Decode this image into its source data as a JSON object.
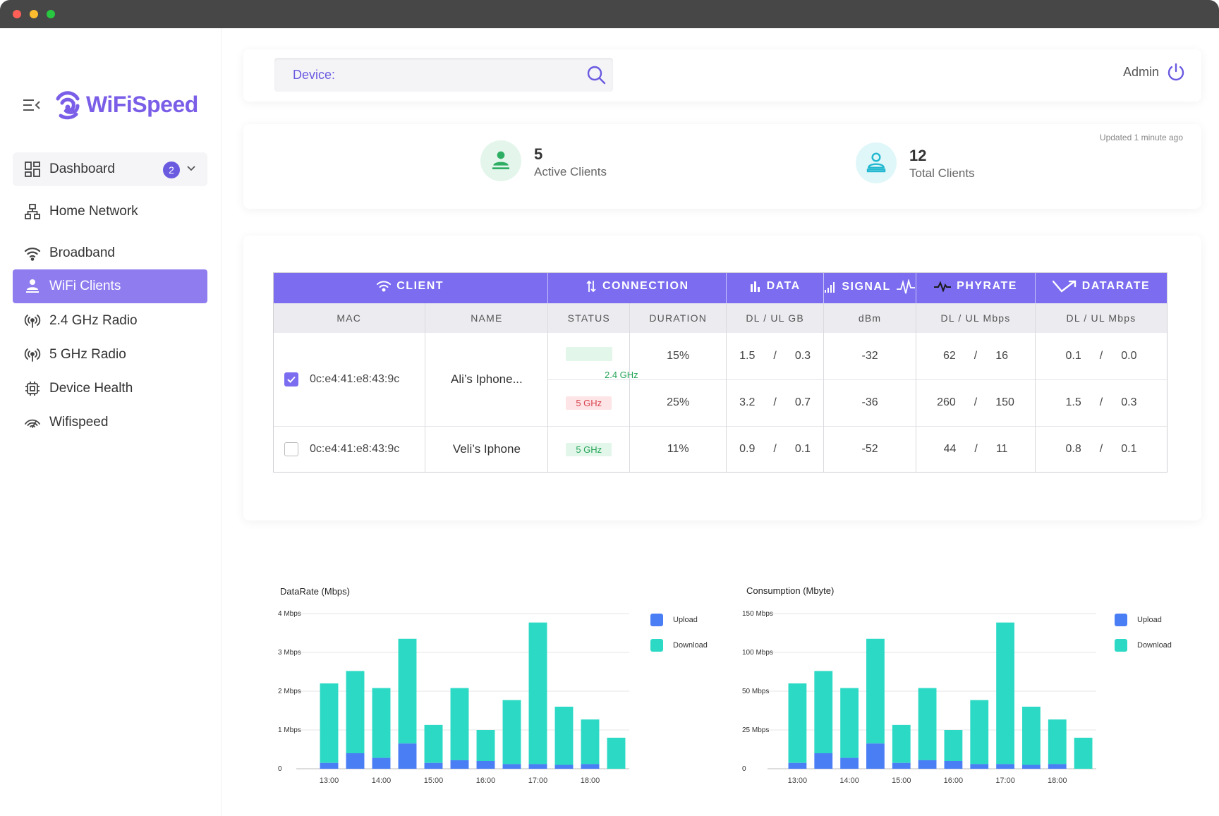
{
  "app": {
    "name": "WiFiSpeed"
  },
  "sidebar": {
    "items": [
      {
        "id": "dashboard",
        "label": "Dashboard",
        "icon": "dashboard-grid-icon",
        "badge": "2"
      },
      {
        "id": "home-network",
        "label": "Home Network",
        "icon": "network-tree-icon"
      },
      {
        "id": "broadband",
        "label": "Broadband",
        "icon": "wifi-icon"
      },
      {
        "id": "wifi-clients",
        "label": "WiFi Clients",
        "icon": "user-wifi-icon",
        "active": true
      },
      {
        "id": "radio-24",
        "label": "2.4 GHz Radio",
        "icon": "radio-antenna-icon"
      },
      {
        "id": "radio-5",
        "label": "5 GHz Radio",
        "icon": "radio-antenna-icon"
      },
      {
        "id": "device-health",
        "label": "Device Health",
        "icon": "chip-icon"
      },
      {
        "id": "wifispeed",
        "label": "Wifispeed",
        "icon": "speed-wifi-icon"
      }
    ]
  },
  "header": {
    "search_placeholder": "Device:",
    "user_label": "Admin"
  },
  "stats": {
    "updated": "Updated 1 minute ago",
    "active": {
      "value": "5",
      "label": "Active Clients"
    },
    "total": {
      "value": "12",
      "label": "Total Clients"
    }
  },
  "table": {
    "groups": {
      "client": "CLIENT",
      "connection": "CONNECTION",
      "data": "DATA",
      "signal": "SIGNAL",
      "phyrate": "PHYRATE",
      "datarate": "DATARATE"
    },
    "columns": {
      "mac": "MAC",
      "name": "NAME",
      "status": "STATUS",
      "duration": "DURATION",
      "data": "DL / UL GB",
      "signal": "dBm",
      "phyrate": "DL / UL  Mbps",
      "datarate": "DL / UL  Mbps"
    },
    "separator": "/",
    "clients": [
      {
        "mac": "0c:e4:41:e8:43:9c",
        "name": "Ali’s Iphone...",
        "checked": true,
        "rows": [
          {
            "status": "2.4 GHz",
            "duration": "15%",
            "dl_gb": "1.5",
            "ul_gb": "0.3",
            "dbm": "-32",
            "phy_dl": "62",
            "phy_ul": "16",
            "rate_dl": "0.1",
            "rate_ul": "0.0"
          },
          {
            "status": "5 GHz",
            "duration": "25%",
            "dl_gb": "3.2",
            "ul_gb": "0.7",
            "dbm": "-36",
            "phy_dl": "260",
            "phy_ul": "150",
            "rate_dl": "1.5",
            "rate_ul": "0.3"
          }
        ]
      },
      {
        "mac": "0c:e4:41:e8:43:9c",
        "name": "Veli’s Iphone",
        "checked": false,
        "rows": [
          {
            "status": "5 GHz",
            "duration": "11%",
            "dl_gb": "0.9",
            "ul_gb": "0.1",
            "dbm": "-52",
            "phy_dl": "44",
            "phy_ul": "11",
            "rate_dl": "0.8",
            "rate_ul": "0.1"
          }
        ]
      }
    ]
  },
  "colors": {
    "accent": "#7b6cf0",
    "upload": "#4a7ef5",
    "download": "#2bd9c4",
    "green": "#27a65a",
    "red": "#d94450"
  },
  "chart_data": [
    {
      "type": "bar",
      "stacked": true,
      "title": "DataRate (Mbps)",
      "y_ticks": [
        "0",
        "1 Mbps",
        "2 Mbps",
        "3 Mbps",
        "4 Mbps"
      ],
      "ylim": [
        0,
        4
      ],
      "x_ticks": [
        "13:00",
        "14:00",
        "15:00",
        "16:00",
        "17:00",
        "18:00"
      ],
      "legend_position": "right",
      "series": [
        {
          "name": "Upload",
          "values": [
            0.15,
            0.4,
            0.28,
            0.65,
            0.15,
            0.22,
            0.2,
            0.12,
            0.12,
            0.1,
            0.12,
            0
          ]
        },
        {
          "name": "Download",
          "values": [
            2.05,
            2.12,
            1.8,
            2.7,
            0.98,
            1.86,
            0.8,
            1.65,
            3.65,
            1.5,
            1.15,
            0.8
          ]
        }
      ]
    },
    {
      "type": "bar",
      "stacked": true,
      "title": "Consumption (Mbyte)",
      "y_ticks": [
        "0",
        "25 Mbps",
        "50 Mbps",
        "100 Mbps",
        "150 Mbps"
      ],
      "ylim": [
        0,
        4
      ],
      "x_ticks": [
        "13:00",
        "14:00",
        "15:00",
        "16:00",
        "17:00",
        "18:00"
      ],
      "legend_position": "right",
      "series": [
        {
          "name": "Upload",
          "values": [
            0.15,
            0.4,
            0.28,
            0.65,
            0.15,
            0.22,
            0.2,
            0.12,
            0.12,
            0.1,
            0.12,
            0
          ]
        },
        {
          "name": "Download",
          "values": [
            2.05,
            2.12,
            1.8,
            2.7,
            0.98,
            1.86,
            0.8,
            1.65,
            3.65,
            1.5,
            1.15,
            0.8
          ]
        }
      ]
    }
  ]
}
